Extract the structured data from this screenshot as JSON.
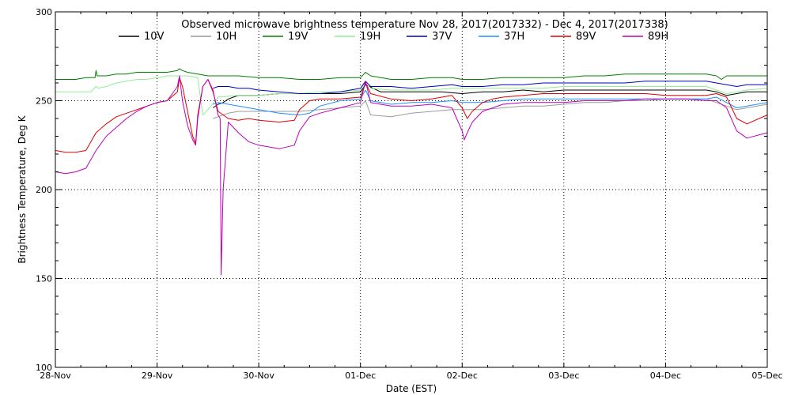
{
  "chart_data": {
    "type": "line",
    "title": "Observed microwave brightness temperature Nov 28, 2017(2017332) - Dec  4, 2017(2017338)",
    "xlabel": "Date (EST)",
    "ylabel": "Brightness Temperature, Deg K",
    "xlim": [
      0,
      7
    ],
    "ylim": [
      100,
      300
    ],
    "x_ticks": [
      {
        "x": 0,
        "label": "28-Nov"
      },
      {
        "x": 1,
        "label": "29-Nov"
      },
      {
        "x": 2,
        "label": "30-Nov"
      },
      {
        "x": 3,
        "label": "01-Dec"
      },
      {
        "x": 4,
        "label": "02-Dec"
      },
      {
        "x": 5,
        "label": "03-Dec"
      },
      {
        "x": 6,
        "label": "04-Dec"
      },
      {
        "x": 7,
        "label": "05-Dec"
      }
    ],
    "y_ticks": [
      {
        "y": 100,
        "label": "100"
      },
      {
        "y": 150,
        "label": "150"
      },
      {
        "y": 200,
        "label": "200"
      },
      {
        "y": 250,
        "label": "250"
      },
      {
        "y": 300,
        "label": "300"
      }
    ],
    "grid": true,
    "legend_position": "top",
    "series": [
      {
        "name": "10V",
        "color": "#000000",
        "x": [
          1.55,
          1.6,
          1.65,
          1.7,
          1.75,
          1.8,
          1.85,
          1.9,
          2.0,
          2.2,
          2.4,
          2.6,
          2.8,
          3.0,
          3.05,
          3.2,
          3.4,
          3.6,
          3.8,
          4.0,
          4.2,
          4.4,
          4.6,
          4.8,
          5.0,
          5.2,
          5.4,
          5.6,
          5.8,
          6.0,
          6.2,
          6.4,
          6.5,
          6.6,
          6.7,
          6.8,
          7.0
        ],
        "values": [
          246,
          248,
          249,
          251,
          252,
          253,
          253,
          253,
          253,
          254,
          254,
          254,
          254,
          255,
          259,
          255,
          255,
          255,
          255,
          254,
          255,
          255,
          256,
          255,
          256,
          256,
          256,
          256,
          256,
          256,
          256,
          256,
          255,
          253,
          254,
          255,
          255
        ]
      },
      {
        "name": "10H",
        "color": "#9a9a9a",
        "x": [
          1.55,
          1.6,
          1.65,
          1.7,
          1.8,
          1.9,
          2.0,
          2.2,
          2.4,
          2.6,
          2.8,
          3.0,
          3.05,
          3.1,
          3.3,
          3.5,
          3.7,
          3.9,
          4.0,
          4.2,
          4.4,
          4.6,
          4.8,
          5.0,
          5.2,
          5.4,
          5.6,
          5.8,
          6.0,
          6.2,
          6.4,
          6.5,
          6.6,
          6.7,
          6.8,
          7.0
        ],
        "values": [
          240,
          241,
          242,
          243,
          244,
          244,
          244,
          244,
          244,
          245,
          246,
          247,
          250,
          242,
          241,
          243,
          244,
          245,
          245,
          245,
          246,
          247,
          247,
          248,
          249,
          249,
          250,
          250,
          251,
          251,
          251,
          249,
          247,
          245,
          246,
          248
        ]
      },
      {
        "name": "19V",
        "color": "#008000",
        "x": [
          0,
          0.1,
          0.2,
          0.3,
          0.39,
          0.4,
          0.41,
          0.5,
          0.6,
          0.7,
          0.8,
          0.9,
          1.0,
          1.1,
          1.2,
          1.22,
          1.25,
          1.3,
          1.4,
          1.5,
          1.6,
          1.8,
          2.0,
          2.2,
          2.4,
          2.6,
          2.8,
          3.0,
          3.05,
          3.1,
          3.3,
          3.5,
          3.7,
          3.9,
          4.0,
          4.2,
          4.4,
          4.6,
          4.8,
          5.0,
          5.2,
          5.4,
          5.6,
          5.8,
          6.0,
          6.2,
          6.4,
          6.5,
          6.55,
          6.6,
          6.8,
          7.0
        ],
        "values": [
          262,
          262,
          262,
          263,
          263,
          267,
          264,
          264,
          265,
          265,
          266,
          266,
          266,
          266,
          267,
          268,
          267,
          266,
          265,
          264,
          264,
          264,
          263,
          263,
          262,
          262,
          263,
          263,
          266,
          264,
          262,
          262,
          263,
          263,
          262,
          262,
          263,
          263,
          263,
          263,
          264,
          264,
          265,
          265,
          265,
          265,
          265,
          264,
          262,
          264,
          264,
          264
        ]
      },
      {
        "name": "19H",
        "color": "#90ee90",
        "x": [
          0,
          0.2,
          0.35,
          0.4,
          0.42,
          0.5,
          0.6,
          0.7,
          0.8,
          0.9,
          1.0,
          1.1,
          1.2,
          1.3,
          1.4,
          1.45,
          1.5,
          1.6,
          1.8,
          2.0,
          2.2,
          2.4,
          2.6,
          2.8,
          3.0,
          3.05,
          3.1,
          3.3,
          3.5,
          3.7,
          3.9,
          4.0,
          4.2,
          4.4,
          4.6,
          4.8,
          5.0,
          5.2,
          5.4,
          5.6,
          5.8,
          6.0,
          6.2,
          6.4,
          6.5,
          6.6,
          6.8,
          7.0
        ],
        "values": [
          255,
          255,
          255,
          258,
          257,
          258,
          260,
          261,
          262,
          262,
          263,
          264,
          264,
          264,
          263,
          242,
          245,
          252,
          253,
          253,
          254,
          254,
          255,
          255,
          256,
          260,
          257,
          256,
          256,
          256,
          257,
          257,
          257,
          257,
          257,
          257,
          258,
          258,
          258,
          258,
          258,
          258,
          258,
          258,
          256,
          254,
          256,
          257
        ]
      },
      {
        "name": "37V",
        "color": "#0000bb",
        "x": [
          1.55,
          1.6,
          1.7,
          1.8,
          1.9,
          2.0,
          2.2,
          2.4,
          2.6,
          2.8,
          3.0,
          3.05,
          3.1,
          3.3,
          3.5,
          3.7,
          3.9,
          4.0,
          4.2,
          4.4,
          4.6,
          4.8,
          5.0,
          5.2,
          5.4,
          5.6,
          5.8,
          6.0,
          6.2,
          6.4,
          6.5,
          6.6,
          6.7,
          6.8,
          7.0
        ],
        "values": [
          257,
          258,
          258,
          257,
          257,
          256,
          255,
          254,
          254,
          255,
          257,
          261,
          258,
          258,
          257,
          258,
          259,
          258,
          258,
          259,
          259,
          260,
          260,
          260,
          260,
          260,
          261,
          261,
          261,
          261,
          260,
          259,
          258,
          259,
          259
        ]
      },
      {
        "name": "37H",
        "color": "#1e90ff",
        "x": [
          1.55,
          1.6,
          1.7,
          1.8,
          1.9,
          2.0,
          2.2,
          2.4,
          2.5,
          2.6,
          2.8,
          3.0,
          3.05,
          3.1,
          3.3,
          3.5,
          3.7,
          3.9,
          4.0,
          4.2,
          4.4,
          4.6,
          4.8,
          5.0,
          5.2,
          5.4,
          5.6,
          5.8,
          6.0,
          6.2,
          6.4,
          6.5,
          6.6,
          6.7,
          6.8,
          7.0
        ],
        "values": [
          248,
          249,
          248,
          247,
          246,
          245,
          243,
          242,
          243,
          247,
          250,
          251,
          256,
          250,
          248,
          249,
          249,
          250,
          249,
          249,
          250,
          251,
          251,
          251,
          251,
          251,
          251,
          251,
          251,
          251,
          251,
          252,
          249,
          246,
          247,
          249
        ]
      },
      {
        "name": "89V",
        "color": "#dd0000",
        "x": [
          0,
          0.1,
          0.2,
          0.3,
          0.4,
          0.5,
          0.6,
          0.7,
          0.8,
          0.9,
          1.0,
          1.1,
          1.2,
          1.22,
          1.25,
          1.3,
          1.35,
          1.38,
          1.4,
          1.45,
          1.5,
          1.55,
          1.6,
          1.7,
          1.8,
          1.9,
          2.0,
          2.2,
          2.35,
          2.4,
          2.5,
          2.6,
          2.8,
          3.0,
          3.05,
          3.1,
          3.3,
          3.5,
          3.7,
          3.9,
          4.0,
          4.05,
          4.1,
          4.2,
          4.3,
          4.4,
          4.6,
          4.8,
          5.0,
          5.2,
          5.4,
          5.6,
          5.8,
          6.0,
          6.2,
          6.4,
          6.5,
          6.6,
          6.7,
          6.8,
          7.0
        ],
        "values": [
          222,
          221,
          221,
          222,
          232,
          237,
          241,
          243,
          245,
          247,
          249,
          250,
          255,
          263,
          258,
          244,
          230,
          226,
          242,
          258,
          262,
          255,
          244,
          240,
          239,
          240,
          239,
          238,
          239,
          245,
          250,
          251,
          251,
          252,
          260,
          254,
          251,
          250,
          251,
          253,
          246,
          240,
          244,
          249,
          251,
          252,
          253,
          254,
          254,
          254,
          254,
          254,
          254,
          253,
          253,
          253,
          254,
          252,
          240,
          237,
          242
        ]
      },
      {
        "name": "89H",
        "color": "#bb00bb",
        "x": [
          0,
          0.1,
          0.2,
          0.3,
          0.4,
          0.5,
          0.6,
          0.7,
          0.8,
          0.9,
          1.0,
          1.1,
          1.2,
          1.22,
          1.25,
          1.3,
          1.35,
          1.38,
          1.4,
          1.45,
          1.5,
          1.55,
          1.6,
          1.62,
          1.63,
          1.65,
          1.7,
          1.8,
          1.9,
          2.0,
          2.2,
          2.35,
          2.4,
          2.5,
          2.6,
          2.8,
          3.0,
          3.05,
          3.1,
          3.3,
          3.5,
          3.7,
          3.9,
          4.0,
          4.02,
          4.05,
          4.1,
          4.2,
          4.3,
          4.4,
          4.6,
          4.8,
          5.0,
          5.2,
          5.4,
          5.6,
          5.8,
          6.0,
          6.2,
          6.4,
          6.5,
          6.6,
          6.7,
          6.8,
          7.0
        ],
        "values": [
          210,
          209,
          210,
          212,
          222,
          230,
          235,
          240,
          244,
          247,
          249,
          250,
          258,
          264,
          250,
          236,
          228,
          225,
          240,
          258,
          262,
          256,
          242,
          240,
          152,
          200,
          238,
          232,
          227,
          225,
          223,
          225,
          233,
          241,
          243,
          246,
          249,
          261,
          249,
          247,
          247,
          248,
          246,
          233,
          228,
          232,
          238,
          244,
          246,
          248,
          249,
          249,
          249,
          250,
          250,
          250,
          251,
          251,
          251,
          250,
          250,
          246,
          233,
          229,
          232
        ]
      }
    ]
  }
}
